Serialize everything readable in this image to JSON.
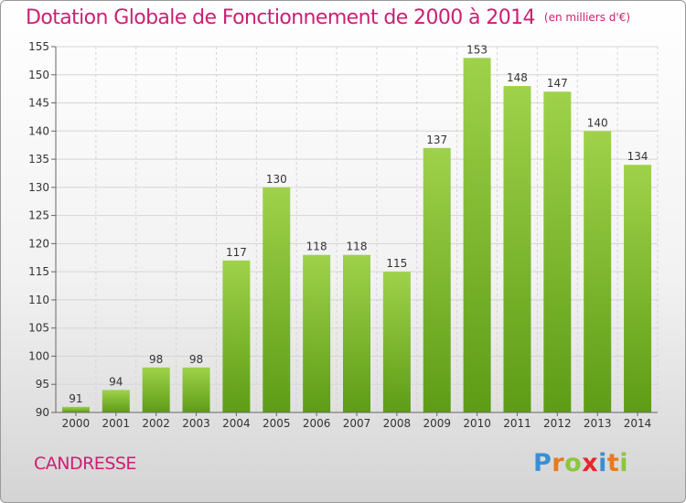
{
  "title": "Dotation Globale de Fonctionnement de 2000 à 2014",
  "subtitle": "(en milliers d'€)",
  "commune": "CANDRESSE",
  "logo": {
    "letters": [
      "P",
      "r",
      "o",
      "x",
      "i",
      "t",
      "i"
    ],
    "colors": [
      "#3a8fd4",
      "#e87b1c",
      "#8cc63f",
      "#e8262b",
      "#3a8fd4",
      "#e87b1c",
      "#8cc63f"
    ]
  },
  "colors": {
    "title": "#cc1f73",
    "bar_top": "#9fd24a",
    "bar_bottom": "#5e9c16",
    "grid": "#d5d5d5"
  },
  "chart_data": {
    "type": "bar",
    "categories": [
      "2000",
      "2001",
      "2002",
      "2003",
      "2004",
      "2005",
      "2006",
      "2007",
      "2008",
      "2009",
      "2010",
      "2011",
      "2012",
      "2013",
      "2014"
    ],
    "values": [
      91,
      94,
      98,
      98,
      117,
      130,
      118,
      118,
      115,
      137,
      153,
      148,
      147,
      140,
      134
    ],
    "title": "Dotation Globale de Fonctionnement de 2000 à 2014",
    "ylim": [
      90,
      155
    ],
    "yticks": [
      90,
      95,
      100,
      105,
      110,
      115,
      120,
      125,
      130,
      135,
      140,
      145,
      150,
      155
    ],
    "grid": true,
    "legend": "none"
  }
}
